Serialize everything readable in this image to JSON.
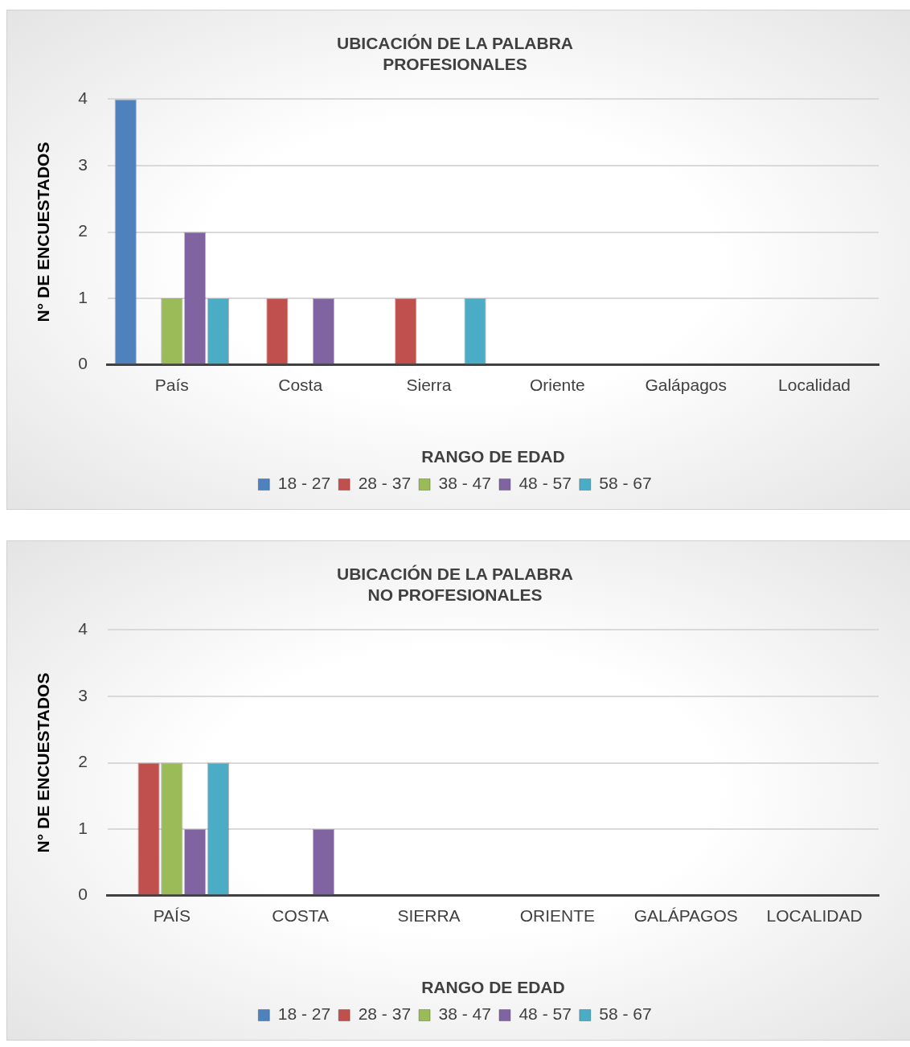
{
  "chart_data": [
    {
      "type": "bar",
      "title": "UBICACIÓN DE LA PALABRA\nPROFESIONALES",
      "xlabel": "RANGO DE EDAD",
      "ylabel": "N° DE ENCUESTADOS",
      "categories": [
        "País",
        "Costa",
        "Sierra",
        "Oriente",
        "Galápagos",
        "Localidad"
      ],
      "series": [
        {
          "name": "18 - 27",
          "color": "#4f81bd",
          "values": [
            4,
            0,
            0,
            0,
            0,
            0
          ]
        },
        {
          "name": "28 - 37",
          "color": "#c0504d",
          "values": [
            0,
            1,
            1,
            0,
            0,
            0
          ]
        },
        {
          "name": "38 - 47",
          "color": "#9bbb59",
          "values": [
            1,
            0,
            0,
            0,
            0,
            0
          ]
        },
        {
          "name": "48 - 57",
          "color": "#8064a2",
          "values": [
            2,
            1,
            0,
            0,
            0,
            0
          ]
        },
        {
          "name": "58 - 67",
          "color": "#4bacc6",
          "values": [
            1,
            0,
            1,
            0,
            0,
            0
          ]
        }
      ],
      "ylim": [
        0,
        4
      ],
      "yticks": [
        0,
        1,
        2,
        3,
        4
      ],
      "grid": "y",
      "legend": "bottom"
    },
    {
      "type": "bar",
      "title": "UBICACIÓN DE LA PALABRA\nNO PROFESIONALES",
      "xlabel": "RANGO DE EDAD",
      "ylabel": "N° DE ENCUESTADOS",
      "categories": [
        "PAÍS",
        "COSTA",
        "SIERRA",
        "ORIENTE",
        "GALÁPAGOS",
        "LOCALIDAD"
      ],
      "series": [
        {
          "name": "18 - 27",
          "color": "#4f81bd",
          "values": [
            0,
            0,
            0,
            0,
            0,
            0
          ]
        },
        {
          "name": "28 - 37",
          "color": "#c0504d",
          "values": [
            2,
            0,
            0,
            0,
            0,
            0
          ]
        },
        {
          "name": "38 - 47",
          "color": "#9bbb59",
          "values": [
            2,
            0,
            0,
            0,
            0,
            0
          ]
        },
        {
          "name": "48 - 57",
          "color": "#8064a2",
          "values": [
            1,
            1,
            0,
            0,
            0,
            0
          ]
        },
        {
          "name": "58 - 67",
          "color": "#4bacc6",
          "values": [
            2,
            0,
            0,
            0,
            0,
            0
          ]
        }
      ],
      "ylim": [
        0,
        4
      ],
      "yticks": [
        0,
        1,
        2,
        3,
        4
      ],
      "grid": "y",
      "legend": "bottom"
    }
  ]
}
